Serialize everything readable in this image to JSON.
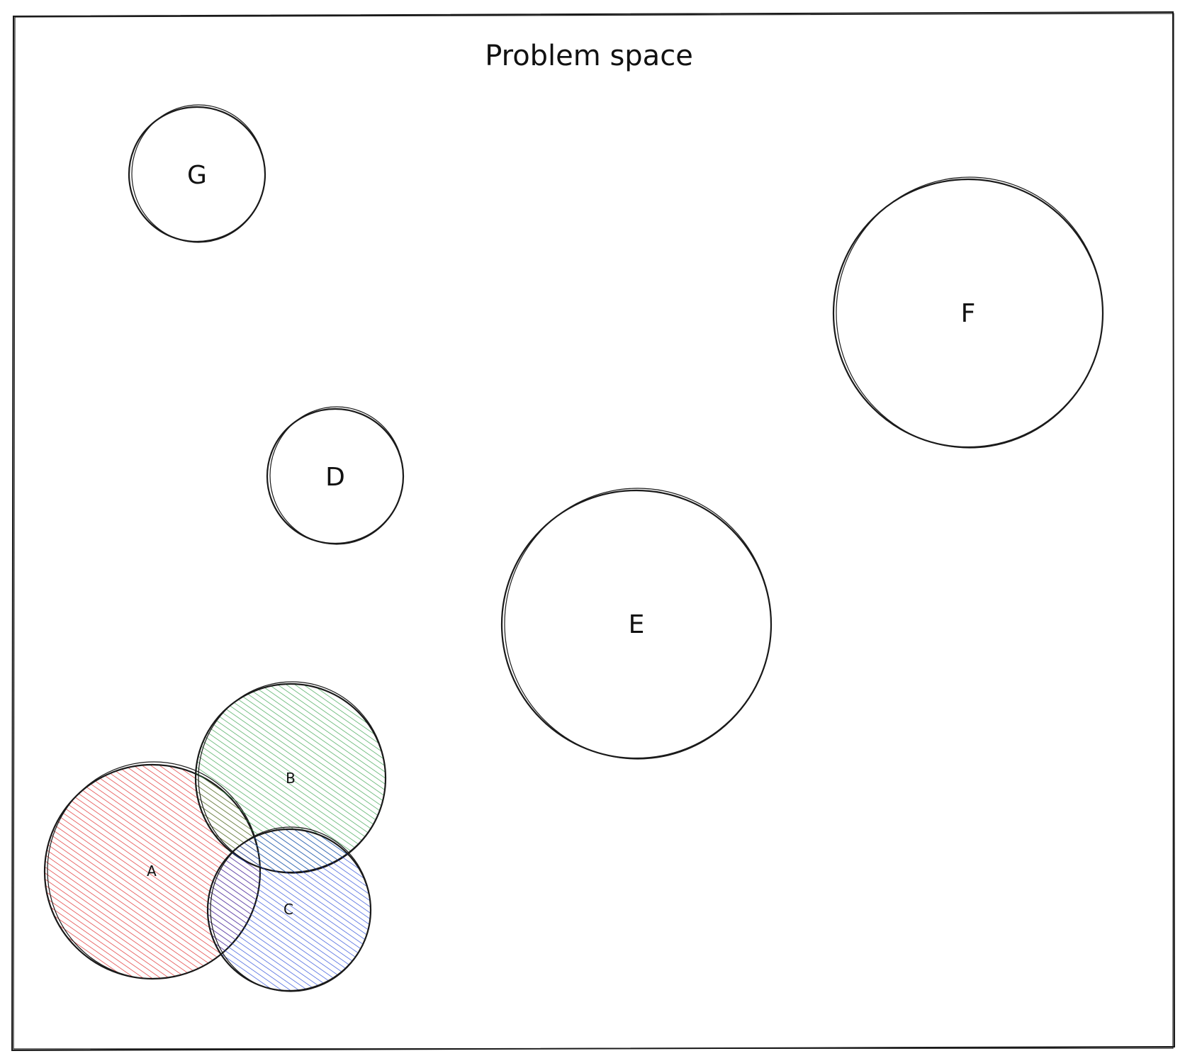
{
  "title": "Problem space",
  "stroke_color": "#1a1a1a",
  "circles": [
    {
      "id": "A",
      "label": "A",
      "fill": "#e03131",
      "hatched": true
    },
    {
      "id": "B",
      "label": "B",
      "fill": "#2f9e44",
      "hatched": true
    },
    {
      "id": "C",
      "label": "C",
      "fill": "#1c3fd6",
      "hatched": true
    },
    {
      "id": "D",
      "label": "D",
      "fill": null,
      "hatched": false
    },
    {
      "id": "E",
      "label": "E",
      "fill": null,
      "hatched": false
    },
    {
      "id": "F",
      "label": "F",
      "fill": null,
      "hatched": false
    },
    {
      "id": "G",
      "label": "G",
      "fill": null,
      "hatched": false
    }
  ]
}
